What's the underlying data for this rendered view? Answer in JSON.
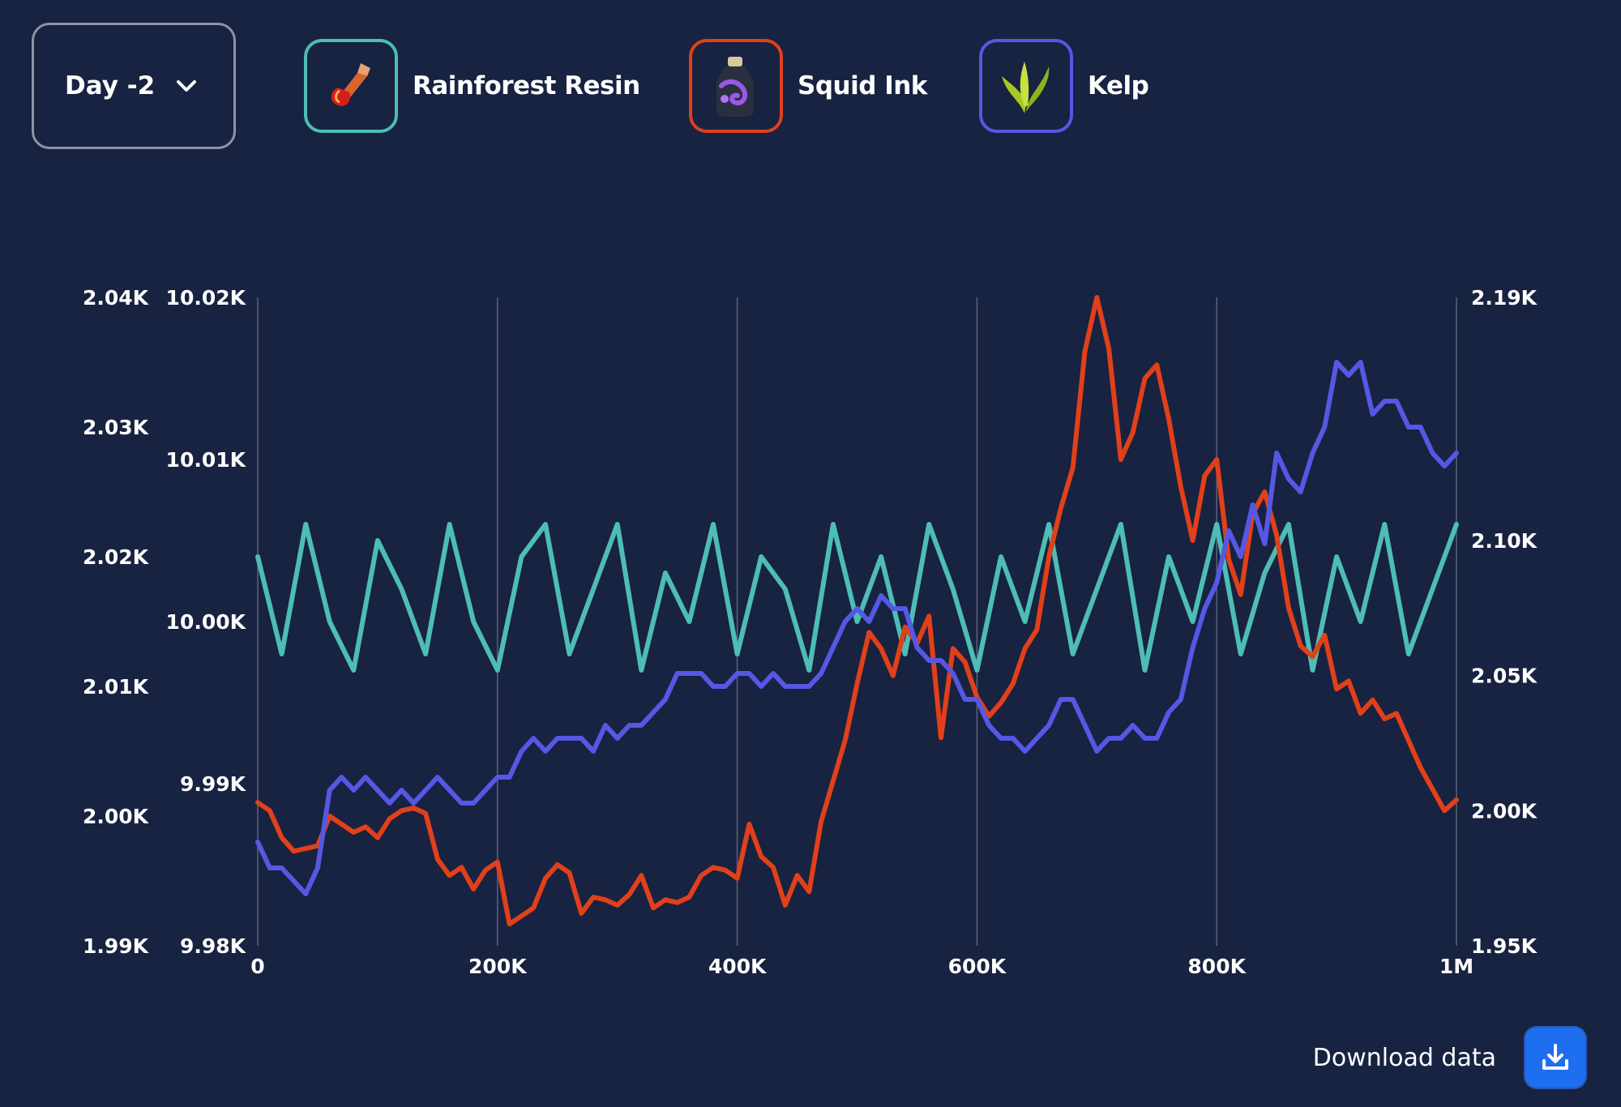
{
  "day_selector": {
    "label": "Day -2",
    "icon": "chevron-down-icon"
  },
  "legend": [
    {
      "label": "Rainforest Resin",
      "icon": "resin-icon",
      "color": "#4dbdb5"
    },
    {
      "label": "Squid Ink",
      "icon": "squid-ink-bottle-icon",
      "color": "#e0401a"
    },
    {
      "label": "Kelp",
      "icon": "kelp-icon",
      "color": "#5558e3"
    }
  ],
  "download": {
    "label": "Download data",
    "icon": "download-icon"
  },
  "chart_data": {
    "type": "line",
    "x_ticks": [
      "0",
      "200K",
      "400K",
      "600K",
      "800K",
      "1M"
    ],
    "x_tick_values": [
      0,
      200000,
      400000,
      600000,
      800000,
      1000000
    ],
    "xlim": [
      0,
      1000000
    ],
    "y_axes": [
      {
        "id": "kelp",
        "side": "left-outer",
        "ylim": [
          1990,
          2040
        ],
        "ticks": [
          "2.04K",
          "2.03K",
          "2.02K",
          "2.01K",
          "2.00K",
          "1.99K"
        ],
        "tick_values": [
          2040,
          2030,
          2020,
          2010,
          2000,
          1990
        ]
      },
      {
        "id": "resin",
        "side": "left-inner",
        "ylim": [
          9980,
          10020
        ],
        "ticks": [
          "10.02K",
          "10.01K",
          "10.00K",
          "9.99K",
          "9.98K"
        ],
        "tick_values": [
          10020,
          10010,
          10000,
          9990,
          9980
        ]
      },
      {
        "id": "squid",
        "side": "right",
        "ylim": [
          1950,
          2190
        ],
        "ticks": [
          "2.19K",
          "2.10K",
          "2.05K",
          "2.00K",
          "1.95K"
        ],
        "tick_values": [
          2190,
          2100,
          2050,
          2000,
          1950
        ]
      }
    ],
    "grid": "vertical",
    "series": [
      {
        "name": "Rainforest Resin",
        "axis": "resin",
        "color": "#4dbdb5",
        "x": [
          0,
          20000,
          40000,
          60000,
          80000,
          100000,
          120000,
          140000,
          160000,
          180000,
          200000,
          220000,
          240000,
          260000,
          280000,
          300000,
          320000,
          340000,
          360000,
          380000,
          400000,
          420000,
          440000,
          460000,
          480000,
          500000,
          520000,
          540000,
          560000,
          580000,
          600000,
          620000,
          640000,
          660000,
          680000,
          700000,
          720000,
          740000,
          760000,
          780000,
          800000,
          820000,
          840000,
          860000,
          880000,
          900000,
          920000,
          940000,
          960000,
          980000,
          1000000
        ],
        "values": [
          10004,
          9998,
          10006,
          10000,
          9997,
          10005,
          10002,
          9998,
          10006,
          10000,
          9997,
          10004,
          10006,
          9998,
          10002,
          10006,
          9997,
          10003,
          10000,
          10006,
          9998,
          10004,
          10002,
          9997,
          10006,
          10000,
          10004,
          9998,
          10006,
          10002,
          9997,
          10004,
          10000,
          10006,
          9998,
          10002,
          10006,
          9997,
          10004,
          10000,
          10006,
          9998,
          10003,
          10006,
          9997,
          10004,
          10000,
          10006,
          9998,
          10002,
          10006
        ]
      },
      {
        "name": "Squid Ink",
        "axis": "squid",
        "color": "#e0401a",
        "x": [
          0,
          10000,
          20000,
          30000,
          40000,
          50000,
          60000,
          70000,
          80000,
          90000,
          100000,
          110000,
          120000,
          130000,
          140000,
          150000,
          160000,
          170000,
          180000,
          190000,
          200000,
          210000,
          220000,
          230000,
          240000,
          250000,
          260000,
          270000,
          280000,
          290000,
          300000,
          310000,
          320000,
          330000,
          340000,
          350000,
          360000,
          370000,
          380000,
          390000,
          400000,
          410000,
          420000,
          430000,
          440000,
          450000,
          460000,
          470000,
          480000,
          490000,
          500000,
          510000,
          520000,
          530000,
          540000,
          550000,
          560000,
          570000,
          580000,
          590000,
          600000,
          610000,
          620000,
          630000,
          640000,
          650000,
          660000,
          670000,
          680000,
          690000,
          700000,
          710000,
          720000,
          730000,
          740000,
          750000,
          760000,
          770000,
          780000,
          790000,
          800000,
          810000,
          820000,
          830000,
          840000,
          850000,
          860000,
          870000,
          880000,
          890000,
          900000,
          910000,
          920000,
          930000,
          940000,
          950000,
          960000,
          970000,
          980000,
          990000,
          1000000
        ],
        "values": [
          2003,
          2000,
          1990,
          1985,
          1986,
          1987,
          1998,
          1995,
          1992,
          1994,
          1990,
          1997,
          2000,
          2001,
          1999,
          1982,
          1976,
          1979,
          1971,
          1978,
          1981,
          1958,
          1961,
          1964,
          1975,
          1980,
          1977,
          1962,
          1968,
          1967,
          1965,
          1969,
          1976,
          1964,
          1967,
          1966,
          1968,
          1976,
          1979,
          1978,
          1975,
          1995,
          1983,
          1979,
          1965,
          1976,
          1970,
          1996,
          2011,
          2026,
          2047,
          2066,
          2060,
          2050,
          2068,
          2062,
          2072,
          2027,
          2060,
          2055,
          2042,
          2035,
          2040,
          2047,
          2060,
          2067,
          2094,
          2112,
          2127,
          2170,
          2190,
          2171,
          2130,
          2140,
          2160,
          2165,
          2145,
          2120,
          2100,
          2124,
          2130,
          2093,
          2080,
          2110,
          2118,
          2102,
          2075,
          2061,
          2057,
          2065,
          2045,
          2048,
          2036,
          2041,
          2034,
          2036,
          2026,
          2016,
          2008,
          2000,
          2004
        ]
      },
      {
        "name": "Kelp",
        "axis": "kelp",
        "color": "#5558e3",
        "x": [
          0,
          10000,
          20000,
          30000,
          40000,
          50000,
          60000,
          70000,
          80000,
          90000,
          100000,
          110000,
          120000,
          130000,
          140000,
          150000,
          160000,
          170000,
          180000,
          190000,
          200000,
          210000,
          220000,
          230000,
          240000,
          250000,
          260000,
          270000,
          280000,
          290000,
          300000,
          310000,
          320000,
          330000,
          340000,
          350000,
          360000,
          370000,
          380000,
          390000,
          400000,
          410000,
          420000,
          430000,
          440000,
          450000,
          460000,
          470000,
          480000,
          490000,
          500000,
          510000,
          520000,
          530000,
          540000,
          550000,
          560000,
          570000,
          580000,
          590000,
          600000,
          610000,
          620000,
          630000,
          640000,
          650000,
          660000,
          670000,
          680000,
          690000,
          700000,
          710000,
          720000,
          730000,
          740000,
          750000,
          760000,
          770000,
          780000,
          790000,
          800000,
          810000,
          820000,
          830000,
          840000,
          850000,
          860000,
          870000,
          880000,
          890000,
          900000,
          910000,
          920000,
          930000,
          940000,
          950000,
          960000,
          970000,
          980000,
          990000,
          1000000
        ],
        "values": [
          1998,
          1996,
          1996,
          1995,
          1994,
          1996,
          2002,
          2003,
          2002,
          2003,
          2002,
          2001,
          2002,
          2001,
          2002,
          2003,
          2002,
          2001,
          2001,
          2002,
          2003,
          2003,
          2005,
          2006,
          2005,
          2006,
          2006,
          2006,
          2005,
          2007,
          2006,
          2007,
          2007,
          2008,
          2009,
          2011,
          2011,
          2011,
          2010,
          2010,
          2011,
          2011,
          2010,
          2011,
          2010,
          2010,
          2010,
          2011,
          2013,
          2015,
          2016,
          2015,
          2017,
          2016,
          2016,
          2013,
          2012,
          2012,
          2011,
          2009,
          2009,
          2007,
          2006,
          2006,
          2005,
          2006,
          2007,
          2009,
          2009,
          2007,
          2005,
          2006,
          2006,
          2007,
          2006,
          2006,
          2008,
          2009,
          2013,
          2016,
          2018,
          2022,
          2020,
          2024,
          2021,
          2028,
          2026,
          2025,
          2028,
          2030,
          2035,
          2034,
          2035,
          2031,
          2032,
          2032,
          2030,
          2030,
          2028,
          2027,
          2028
        ]
      }
    ]
  }
}
